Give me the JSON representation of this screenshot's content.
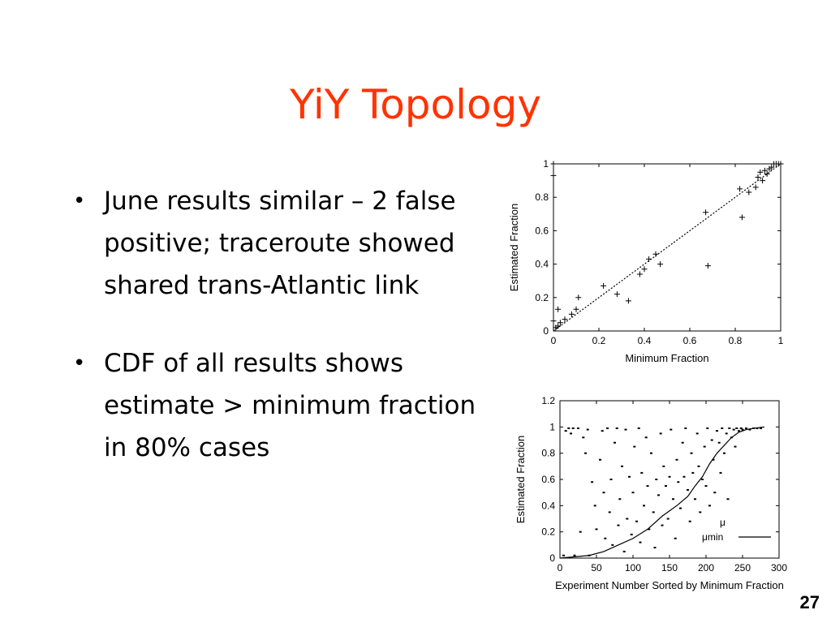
{
  "slide": {
    "title": "YiY Topology",
    "bullets": [
      "June results similar – 2 false positive; traceroute showed shared trans-Atlantic link",
      "CDF of all results shows estimate > minimum fraction in 80% cases"
    ],
    "page_number": "27"
  },
  "chart_data": [
    {
      "type": "scatter",
      "xlabel": "Minimum Fraction",
      "ylabel": "Estimated Fraction",
      "xlim": [
        0,
        1
      ],
      "ylim": [
        0,
        1
      ],
      "xticks": [
        "0",
        "0.2",
        "0.4",
        "0.6",
        "0.8",
        "1"
      ],
      "yticks": [
        "0",
        "0.2",
        "0.4",
        "0.6",
        "0.8",
        "1"
      ],
      "grid": false,
      "series": [
        {
          "marker": "plus",
          "points": [
            [
              0,
              1
            ],
            [
              0,
              0.93
            ],
            [
              0,
              0.06
            ],
            [
              0.01,
              0.02
            ],
            [
              0.02,
              0.03
            ],
            [
              0.02,
              0.13
            ],
            [
              0.03,
              0.05
            ],
            [
              0.05,
              0.07
            ],
            [
              0.08,
              0.1
            ],
            [
              0.1,
              0.13
            ],
            [
              0.11,
              0.2
            ],
            [
              0.22,
              0.27
            ],
            [
              0.28,
              0.22
            ],
            [
              0.33,
              0.18
            ],
            [
              0.38,
              0.34
            ],
            [
              0.4,
              0.37
            ],
            [
              0.42,
              0.43
            ],
            [
              0.45,
              0.46
            ],
            [
              0.47,
              0.4
            ],
            [
              0.67,
              0.71
            ],
            [
              0.68,
              0.39
            ],
            [
              0.82,
              0.85
            ],
            [
              0.83,
              0.68
            ],
            [
              0.86,
              0.83
            ],
            [
              0.89,
              0.86
            ],
            [
              0.9,
              0.92
            ],
            [
              0.91,
              0.95
            ],
            [
              0.92,
              0.9
            ],
            [
              0.93,
              0.96
            ],
            [
              0.94,
              0.94
            ],
            [
              0.95,
              0.97
            ],
            [
              0.96,
              0.98
            ],
            [
              0.97,
              1
            ],
            [
              0.98,
              1
            ],
            [
              0.99,
              1
            ],
            [
              1,
              1
            ]
          ]
        },
        {
          "marker": "dotted-line",
          "points": [
            [
              0,
              0
            ],
            [
              1,
              1
            ]
          ]
        }
      ]
    },
    {
      "type": "scatter",
      "xlabel": "Experiment Number Sorted by Minimum Fraction",
      "ylabel": "Estimated Fraction",
      "xlim": [
        0,
        300
      ],
      "ylim": [
        0,
        1.2
      ],
      "xticks": [
        "0",
        "50",
        "100",
        "150",
        "200",
        "250",
        "300"
      ],
      "yticks": [
        "0",
        "0.2",
        "0.4",
        "0.6",
        "0.8",
        "1",
        "1.2"
      ],
      "grid": false,
      "legend": {
        "entries": [
          "μ",
          "μmin"
        ],
        "position": "bottom-right"
      },
      "series": [
        {
          "name": "μ",
          "marker": "dot",
          "points": [
            [
              5,
              0.02
            ],
            [
              8,
              0.97
            ],
            [
              12,
              0.99
            ],
            [
              15,
              0.95
            ],
            [
              18,
              0.99
            ],
            [
              20,
              0.02
            ],
            [
              25,
              0.99
            ],
            [
              28,
              0.2
            ],
            [
              32,
              0.92
            ],
            [
              35,
              0.8
            ],
            [
              38,
              0.98
            ],
            [
              40,
              0.02
            ],
            [
              44,
              0.58
            ],
            [
              48,
              0.4
            ],
            [
              50,
              0.22
            ],
            [
              55,
              0.75
            ],
            [
              58,
              0.97
            ],
            [
              60,
              0.5
            ],
            [
              62,
              0.15
            ],
            [
              65,
              0.99
            ],
            [
              68,
              0.35
            ],
            [
              70,
              0.6
            ],
            [
              72,
              0.1
            ],
            [
              75,
              0.88
            ],
            [
              78,
              0.99
            ],
            [
              80,
              0.25
            ],
            [
              82,
              0.45
            ],
            [
              85,
              0.7
            ],
            [
              88,
              0.05
            ],
            [
              90,
              0.98
            ],
            [
              92,
              0.3
            ],
            [
              95,
              0.62
            ],
            [
              98,
              0.18
            ],
            [
              100,
              0.5
            ],
            [
              102,
              0.85
            ],
            [
              105,
              0.28
            ],
            [
              108,
              0.99
            ],
            [
              110,
              0.12
            ],
            [
              112,
              0.65
            ],
            [
              115,
              0.4
            ],
            [
              118,
              0.92
            ],
            [
              120,
              0.55
            ],
            [
              122,
              0.22
            ],
            [
              125,
              0.8
            ],
            [
              128,
              0.35
            ],
            [
              130,
              0.08
            ],
            [
              132,
              0.6
            ],
            [
              135,
              0.48
            ],
            [
              138,
              0.95
            ],
            [
              140,
              0.25
            ],
            [
              142,
              0.7
            ],
            [
              145,
              0.55
            ],
            [
              148,
              0.3
            ],
            [
              150,
              0.62
            ],
            [
              152,
              0.98
            ],
            [
              155,
              0.45
            ],
            [
              158,
              0.15
            ],
            [
              160,
              0.75
            ],
            [
              162,
              0.58
            ],
            [
              165,
              0.38
            ],
            [
              168,
              0.88
            ],
            [
              170,
              0.62
            ],
            [
              172,
              0.99
            ],
            [
              175,
              0.52
            ],
            [
              178,
              0.28
            ],
            [
              180,
              0.8
            ],
            [
              182,
              0.65
            ],
            [
              185,
              0.45
            ],
            [
              188,
              0.95
            ],
            [
              190,
              0.7
            ],
            [
              192,
              0.35
            ],
            [
              195,
              0.6
            ],
            [
              198,
              0.85
            ],
            [
              200,
              0.55
            ],
            [
              202,
              0.99
            ],
            [
              205,
              0.4
            ],
            [
              208,
              0.9
            ],
            [
              210,
              0.75
            ],
            [
              212,
              0.5
            ],
            [
              215,
              0.97
            ],
            [
              218,
              0.88
            ],
            [
              220,
              0.65
            ],
            [
              222,
              0.99
            ],
            [
              225,
              0.8
            ],
            [
              228,
              0.95
            ],
            [
              230,
              0.45
            ],
            [
              232,
              0.99
            ],
            [
              235,
              0.92
            ],
            [
              238,
              0.98
            ],
            [
              240,
              0.85
            ],
            [
              242,
              0.99
            ],
            [
              245,
              0.97
            ],
            [
              248,
              0.99
            ],
            [
              250,
              0.98
            ],
            [
              255,
              0.99
            ],
            [
              260,
              0.98
            ],
            [
              265,
              0.99
            ],
            [
              270,
              0.99
            ],
            [
              275,
              0.99
            ]
          ]
        },
        {
          "name": "μmin",
          "marker": "line",
          "points": [
            [
              0,
              0
            ],
            [
              20,
              0.01
            ],
            [
              40,
              0.02
            ],
            [
              60,
              0.05
            ],
            [
              80,
              0.1
            ],
            [
              100,
              0.15
            ],
            [
              120,
              0.22
            ],
            [
              140,
              0.32
            ],
            [
              160,
              0.4
            ],
            [
              175,
              0.47
            ],
            [
              185,
              0.55
            ],
            [
              195,
              0.62
            ],
            [
              205,
              0.72
            ],
            [
              215,
              0.8
            ],
            [
              225,
              0.86
            ],
            [
              235,
              0.92
            ],
            [
              245,
              0.96
            ],
            [
              255,
              0.98
            ],
            [
              265,
              0.99
            ],
            [
              280,
              1
            ]
          ]
        }
      ]
    }
  ]
}
